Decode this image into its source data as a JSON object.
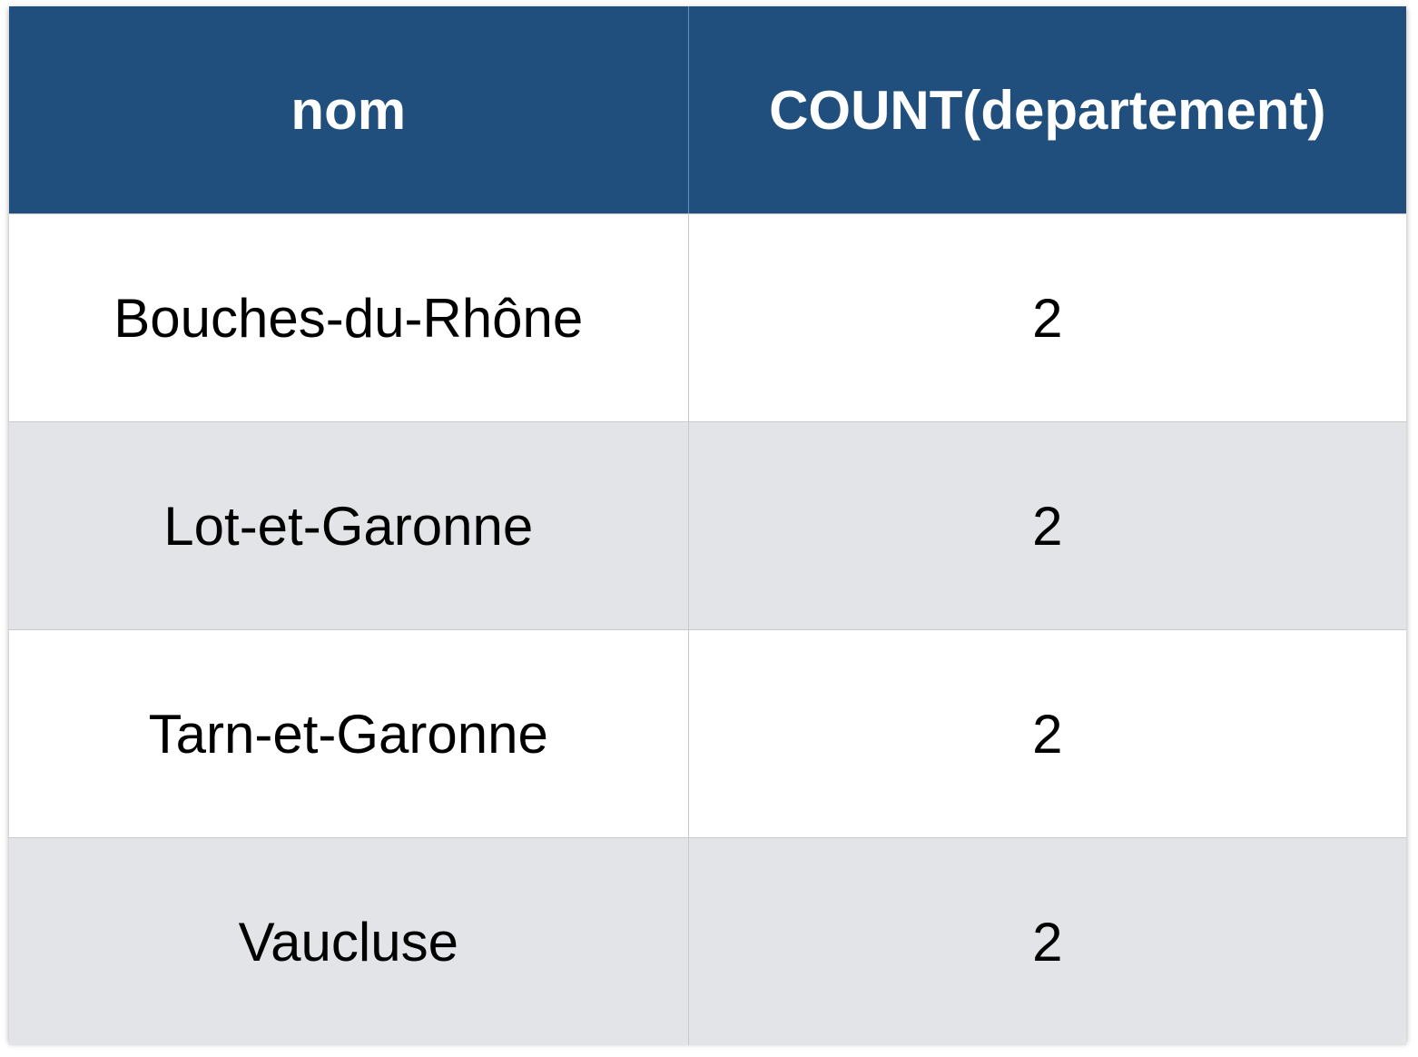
{
  "table": {
    "header": {
      "col1": "nom",
      "col2": "COUNT(departement)"
    },
    "rows": [
      {
        "nom": "Bouches-du-Rhône",
        "count": "2"
      },
      {
        "nom": "Lot-et-Garonne",
        "count": "2"
      },
      {
        "nom": "Tarn-et-Garonne",
        "count": "2"
      },
      {
        "nom": "Vaucluse",
        "count": "2"
      }
    ]
  },
  "colors": {
    "header_bg": "#204f7e",
    "header_text": "#ffffff",
    "row_alt_bg": "#e3e4e8",
    "row_bg": "#ffffff"
  }
}
